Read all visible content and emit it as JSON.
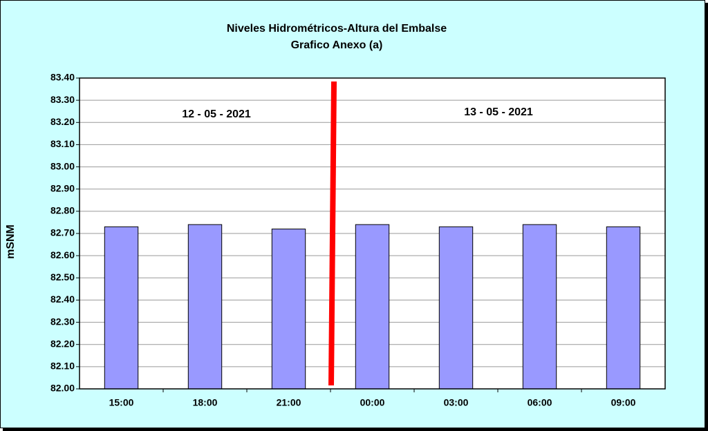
{
  "chart_data": {
    "type": "bar",
    "title": "Niveles Hidrométricos-Altura del Embalse",
    "subtitle": "Grafico Anexo (a)",
    "y_label": "mSNM",
    "annotations": [
      "12 - 05 - 2021",
      "13 - 05 - 2021"
    ],
    "categories": [
      "15:00",
      "18:00",
      "21:00",
      "00:00",
      "03:00",
      "06:00",
      "09:00"
    ],
    "values": [
      82.73,
      82.74,
      82.72,
      82.74,
      82.73,
      82.74,
      82.73
    ],
    "color": "#9999ff",
    "ylim": [
      82,
      83.4
    ],
    "yticks": [
      {
        "value": 82,
        "label": "82.00"
      },
      {
        "value": 82.1,
        "label": "82.10"
      },
      {
        "value": 82.2,
        "label": "82.20"
      },
      {
        "value": 82.3,
        "label": "82.30"
      },
      {
        "value": 82.4,
        "label": "82.40"
      },
      {
        "value": 82.5,
        "label": "82.50"
      },
      {
        "value": 82.6,
        "label": "82.60"
      },
      {
        "value": 82.7,
        "label": "82.70"
      },
      {
        "value": 82.8,
        "label": "82.80"
      },
      {
        "value": 82.9,
        "label": "82.90"
      },
      {
        "value": 83,
        "label": "83.00"
      },
      {
        "value": 83.1,
        "label": "83.10"
      },
      {
        "value": 83.2,
        "label": "83.20"
      },
      {
        "value": 83.3,
        "label": "83.30"
      },
      {
        "value": 83.4,
        "label": "83.40"
      }
    ],
    "grid": true
  }
}
